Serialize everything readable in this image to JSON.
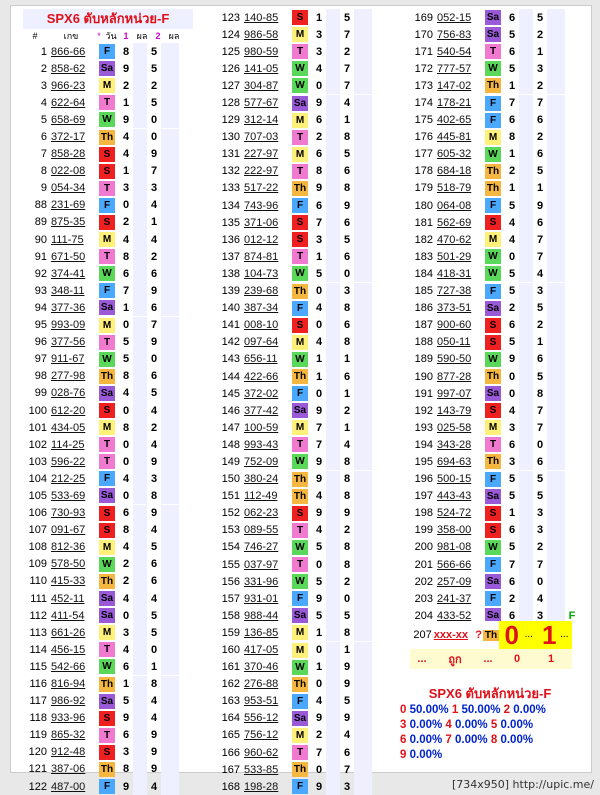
{
  "title": "SPX6 ตับหลักหน่วย-F",
  "header": {
    "num": "#",
    "val": "เกข",
    "star": "*",
    "day": "วัน",
    "c1": "1",
    "pl1": "ผล",
    "c2": "2",
    "pl2": "ผล"
  },
  "col1": [
    [
      "1",
      "866-66",
      "F",
      "8",
      "5"
    ],
    [
      "2",
      "858-62",
      "Sa",
      "9",
      "5"
    ],
    [
      "3",
      "966-23",
      "M",
      "2",
      "2"
    ],
    [
      "4",
      "622-64",
      "T",
      "1",
      "5"
    ],
    [
      "5",
      "658-69",
      "W",
      "9",
      "0"
    ],
    [
      "6",
      "372-17",
      "Th",
      "4",
      "0"
    ],
    [
      "7",
      "858-28",
      "S",
      "4",
      "9"
    ],
    [
      "8",
      "022-08",
      "S",
      "1",
      "7"
    ],
    [
      "9",
      "054-34",
      "T",
      "3",
      "3"
    ],
    [
      "88",
      "231-69",
      "F",
      "0",
      "4"
    ],
    [
      "89",
      "875-35",
      "S",
      "2",
      "1"
    ],
    [
      "90",
      "111-75",
      "M",
      "4",
      "4"
    ],
    [
      "91",
      "671-50",
      "T",
      "8",
      "2"
    ],
    [
      "92",
      "374-41",
      "W",
      "6",
      "6"
    ],
    [
      "93",
      "348-11",
      "F",
      "7",
      "9"
    ],
    [
      "94",
      "377-36",
      "Sa",
      "1",
      "6"
    ],
    [
      "95",
      "993-09",
      "M",
      "0",
      "7"
    ],
    [
      "96",
      "377-56",
      "T",
      "5",
      "9"
    ],
    [
      "97",
      "911-67",
      "W",
      "5",
      "0"
    ],
    [
      "98",
      "277-98",
      "Th",
      "8",
      "6"
    ],
    [
      "99",
      "028-76",
      "Sa",
      "4",
      "5"
    ],
    [
      "100",
      "612-20",
      "S",
      "0",
      "4"
    ],
    [
      "101",
      "434-05",
      "M",
      "8",
      "2"
    ],
    [
      "102",
      "114-25",
      "T",
      "0",
      "4"
    ],
    [
      "103",
      "596-22",
      "T",
      "0",
      "9"
    ],
    [
      "104",
      "212-25",
      "F",
      "4",
      "3"
    ],
    [
      "105",
      "533-69",
      "Sa",
      "0",
      "8"
    ],
    [
      "106",
      "730-93",
      "S",
      "6",
      "9"
    ],
    [
      "107",
      "091-67",
      "S",
      "8",
      "4"
    ],
    [
      "108",
      "812-36",
      "M",
      "4",
      "5"
    ],
    [
      "109",
      "578-50",
      "W",
      "2",
      "6"
    ],
    [
      "110",
      "415-33",
      "Th",
      "2",
      "6"
    ],
    [
      "111",
      "452-11",
      "Sa",
      "4",
      "4"
    ],
    [
      "112",
      "411-54",
      "Sa",
      "0",
      "5"
    ],
    [
      "113",
      "661-26",
      "M",
      "3",
      "5"
    ],
    [
      "114",
      "456-15",
      "T",
      "4",
      "0"
    ],
    [
      "115",
      "542-66",
      "W",
      "6",
      "1"
    ],
    [
      "116",
      "816-94",
      "Th",
      "1",
      "8"
    ],
    [
      "117",
      "986-92",
      "Sa",
      "5",
      "4"
    ],
    [
      "118",
      "933-96",
      "S",
      "9",
      "4"
    ],
    [
      "119",
      "865-32",
      "T",
      "6",
      "9"
    ],
    [
      "120",
      "912-48",
      "S",
      "3",
      "9"
    ],
    [
      "121",
      "387-06",
      "Th",
      "8",
      "9"
    ],
    [
      "122",
      "487-00",
      "F",
      "9",
      "4"
    ]
  ],
  "col2": [
    [
      "123",
      "140-85",
      "S",
      "1",
      "5"
    ],
    [
      "124",
      "986-58",
      "M",
      "3",
      "7"
    ],
    [
      "125",
      "980-59",
      "T",
      "3",
      "2"
    ],
    [
      "126",
      "141-05",
      "W",
      "4",
      "7"
    ],
    [
      "127",
      "304-87",
      "W",
      "0",
      "7"
    ],
    [
      "128",
      "577-67",
      "Sa",
      "9",
      "4"
    ],
    [
      "129",
      "312-14",
      "M",
      "6",
      "1"
    ],
    [
      "130",
      "707-03",
      "T",
      "2",
      "8"
    ],
    [
      "131",
      "227-97",
      "M",
      "6",
      "5"
    ],
    [
      "132",
      "222-97",
      "T",
      "8",
      "6"
    ],
    [
      "133",
      "517-22",
      "Th",
      "9",
      "8"
    ],
    [
      "134",
      "743-96",
      "F",
      "6",
      "9"
    ],
    [
      "135",
      "371-06",
      "S",
      "7",
      "6"
    ],
    [
      "136",
      "012-12",
      "S",
      "3",
      "5"
    ],
    [
      "137",
      "874-81",
      "T",
      "1",
      "6"
    ],
    [
      "138",
      "104-73",
      "W",
      "5",
      "0"
    ],
    [
      "139",
      "239-68",
      "Th",
      "0",
      "3"
    ],
    [
      "140",
      "387-34",
      "F",
      "4",
      "8"
    ],
    [
      "141",
      "008-10",
      "S",
      "0",
      "6"
    ],
    [
      "142",
      "097-64",
      "M",
      "4",
      "8"
    ],
    [
      "143",
      "656-11",
      "W",
      "1",
      "1"
    ],
    [
      "144",
      "422-66",
      "Th",
      "1",
      "6"
    ],
    [
      "145",
      "372-02",
      "F",
      "0",
      "1"
    ],
    [
      "146",
      "377-42",
      "Sa",
      "9",
      "2"
    ],
    [
      "147",
      "100-59",
      "M",
      "7",
      "1"
    ],
    [
      "148",
      "993-43",
      "T",
      "7",
      "4"
    ],
    [
      "149",
      "752-09",
      "W",
      "9",
      "8"
    ],
    [
      "150",
      "380-24",
      "Th",
      "9",
      "8"
    ],
    [
      "151",
      "112-49",
      "Th",
      "4",
      "8"
    ],
    [
      "152",
      "062-23",
      "S",
      "9",
      "9"
    ],
    [
      "153",
      "089-55",
      "T",
      "4",
      "2"
    ],
    [
      "154",
      "746-27",
      "W",
      "5",
      "8"
    ],
    [
      "155",
      "037-97",
      "T",
      "0",
      "8"
    ],
    [
      "156",
      "331-96",
      "W",
      "5",
      "2"
    ],
    [
      "157",
      "931-01",
      "F",
      "9",
      "0"
    ],
    [
      "158",
      "988-44",
      "Sa",
      "5",
      "5"
    ],
    [
      "159",
      "136-85",
      "M",
      "1",
      "8"
    ],
    [
      "160",
      "417-05",
      "M",
      "0",
      "1"
    ],
    [
      "161",
      "370-46",
      "W",
      "1",
      "9"
    ],
    [
      "162",
      "276-88",
      "Th",
      "0",
      "9"
    ],
    [
      "163",
      "953-51",
      "F",
      "4",
      "5"
    ],
    [
      "164",
      "556-12",
      "Sa",
      "9",
      "9"
    ],
    [
      "165",
      "756-12",
      "M",
      "2",
      "4"
    ],
    [
      "166",
      "960-62",
      "T",
      "7",
      "6"
    ],
    [
      "167",
      "533-85",
      "Th",
      "0",
      "7"
    ],
    [
      "168",
      "198-28",
      "F",
      "9",
      "3"
    ]
  ],
  "col3": [
    [
      "169",
      "052-15",
      "Sa",
      "6",
      "5"
    ],
    [
      "170",
      "756-83",
      "Sa",
      "5",
      "2"
    ],
    [
      "171",
      "540-54",
      "T",
      "6",
      "1"
    ],
    [
      "172",
      "777-57",
      "W",
      "5",
      "3"
    ],
    [
      "173",
      "147-02",
      "Th",
      "1",
      "2"
    ],
    [
      "174",
      "178-21",
      "F",
      "7",
      "7"
    ],
    [
      "175",
      "402-65",
      "F",
      "6",
      "6"
    ],
    [
      "176",
      "445-81",
      "M",
      "8",
      "2"
    ],
    [
      "177",
      "605-32",
      "W",
      "1",
      "6"
    ],
    [
      "178",
      "684-18",
      "Th",
      "2",
      "5"
    ],
    [
      "179",
      "518-79",
      "Th",
      "1",
      "1"
    ],
    [
      "180",
      "064-08",
      "F",
      "5",
      "9"
    ],
    [
      "181",
      "562-69",
      "S",
      "4",
      "6"
    ],
    [
      "182",
      "470-62",
      "M",
      "4",
      "7"
    ],
    [
      "183",
      "501-29",
      "W",
      "0",
      "7"
    ],
    [
      "184",
      "418-31",
      "W",
      "5",
      "4"
    ],
    [
      "185",
      "727-38",
      "F",
      "5",
      "3"
    ],
    [
      "186",
      "373-51",
      "Sa",
      "2",
      "5"
    ],
    [
      "187",
      "900-60",
      "S",
      "6",
      "2"
    ],
    [
      "188",
      "050-11",
      "S",
      "5",
      "1"
    ],
    [
      "189",
      "590-50",
      "W",
      "9",
      "6"
    ],
    [
      "190",
      "877-28",
      "Th",
      "0",
      "5"
    ],
    [
      "191",
      "997-07",
      "Sa",
      "0",
      "8"
    ],
    [
      "192",
      "143-79",
      "S",
      "4",
      "7"
    ],
    [
      "193",
      "025-58",
      "M",
      "3",
      "7"
    ],
    [
      "194",
      "343-28",
      "T",
      "6",
      "0"
    ],
    [
      "195",
      "694-63",
      "Th",
      "3",
      "6"
    ],
    [
      "196",
      "500-15",
      "F",
      "5",
      "5"
    ],
    [
      "197",
      "443-43",
      "Sa",
      "5",
      "5"
    ],
    [
      "198",
      "524-72",
      "S",
      "1",
      "3"
    ],
    [
      "199",
      "358-00",
      "S",
      "6",
      "3"
    ],
    [
      "200",
      "981-08",
      "W",
      "5",
      "2"
    ],
    [
      "201",
      "566-66",
      "F",
      "7",
      "7"
    ],
    [
      "202",
      "257-09",
      "Sa",
      "6",
      "0"
    ],
    [
      "203",
      "241-37",
      "F",
      "2",
      "4"
    ],
    [
      "204",
      "433-52",
      "Sa",
      "6",
      "3",
      "F"
    ],
    [
      "205",
      "688-53",
      "M",
      "2",
      "6"
    ],
    [
      "206",
      "846-86",
      "T",
      "7",
      "5"
    ]
  ],
  "pred": {
    "num": "207",
    "val": "xxx-xx",
    "q": "?",
    "day": "Th",
    "big1": "0",
    "dots": "...",
    "big2": "1",
    "dots2": "...",
    "r2a": "...",
    "r2b": "ถูก",
    "r2c": "...",
    "r2d": "0",
    "r2e": "1"
  },
  "stats": {
    "title": "SPX6 ตับหลักหน่วย-F",
    "lines": [
      [
        [
          "0",
          "50.00%"
        ],
        [
          "1",
          "50.00%"
        ],
        [
          "2",
          "0.00%"
        ]
      ],
      [
        [
          "3",
          "0.00%"
        ],
        [
          "4",
          "0.00%"
        ],
        [
          "5",
          "0.00%"
        ]
      ],
      [
        [
          "6",
          "0.00%"
        ],
        [
          "7",
          "0.00%"
        ],
        [
          "8",
          "0.00%"
        ]
      ],
      [
        [
          "9",
          "0.00%"
        ]
      ]
    ]
  },
  "footer": "[734x950] http://upic.me/"
}
